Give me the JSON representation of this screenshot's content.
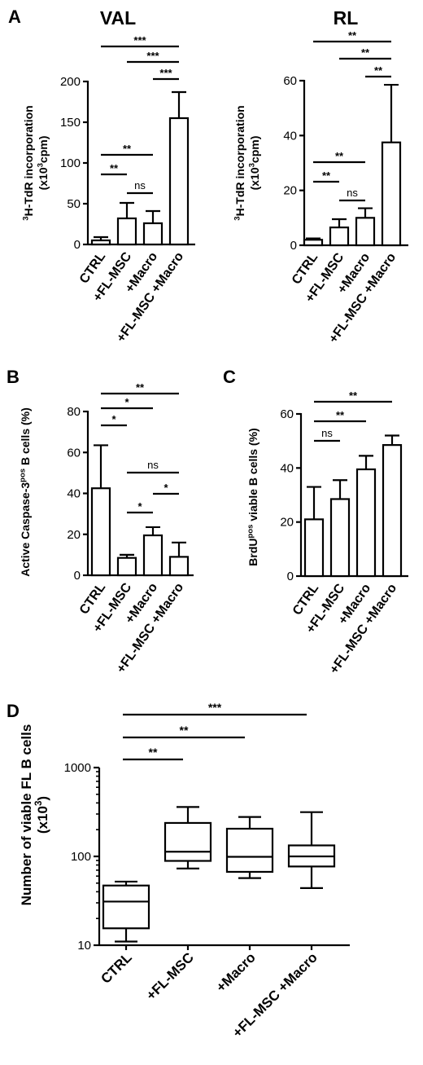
{
  "chart_data": [
    {
      "panel_label": "A",
      "title": "VAL",
      "type": "bar",
      "ylabel_sup": "3",
      "ylabel_main": "H-TdR incorporation",
      "ylabel_line2_pre": "(x10",
      "ylabel_line2_sup": "3",
      "ylabel_line2_post": "cpm)",
      "ylim": [
        0,
        200
      ],
      "yticks": [
        0,
        50,
        100,
        150,
        200
      ],
      "categories": [
        "CTRL",
        "+FL-MSC",
        "+Macro",
        "+FL-MSC +Macro"
      ],
      "values": [
        5,
        32,
        26,
        155
      ],
      "errors": [
        4,
        19,
        15,
        32
      ],
      "significance": [
        {
          "from": 0,
          "to": 3,
          "label": "***"
        },
        {
          "from": 1,
          "to": 3,
          "label": "***"
        },
        {
          "from": 2,
          "to": 3,
          "label": "***"
        },
        {
          "from": 0,
          "to": 2,
          "label": "**"
        },
        {
          "from": 0,
          "to": 1,
          "label": "**"
        },
        {
          "from": 1,
          "to": 2,
          "label": "ns"
        }
      ]
    },
    {
      "title": "RL",
      "type": "bar",
      "ylabel_sup": "3",
      "ylabel_main": "H-TdR incorporation",
      "ylabel_line2_pre": "(x10",
      "ylabel_line2_sup": "3",
      "ylabel_line2_post": "cpm)",
      "ylim": [
        0,
        60
      ],
      "yticks": [
        0,
        20,
        40,
        60
      ],
      "categories": [
        "CTRL",
        "+FL-MSC",
        "+Macro",
        "+FL-MSC +Macro"
      ],
      "values": [
        2,
        6.5,
        10,
        37.5
      ],
      "errors": [
        0.5,
        3,
        3.5,
        21
      ],
      "significance": [
        {
          "from": 0,
          "to": 3,
          "label": "**"
        },
        {
          "from": 1,
          "to": 3,
          "label": "**"
        },
        {
          "from": 2,
          "to": 3,
          "label": "**"
        },
        {
          "from": 0,
          "to": 2,
          "label": "**"
        },
        {
          "from": 0,
          "to": 1,
          "label": "**"
        },
        {
          "from": 1,
          "to": 2,
          "label": "ns"
        }
      ]
    },
    {
      "panel_label": "B",
      "type": "bar",
      "ylabel_main": "Active Caspase-3",
      "ylabel_sup": "pos",
      "ylabel_post": " B cells (%)",
      "ylim": [
        0,
        80
      ],
      "yticks": [
        0,
        20,
        40,
        60,
        80
      ],
      "categories": [
        "CTRL",
        "+FL-MSC",
        "+Macro",
        "+FL-MSC +Macro"
      ],
      "values": [
        42.5,
        8.5,
        19.5,
        9
      ],
      "errors": [
        21,
        1.5,
        4,
        7
      ],
      "significance": [
        {
          "from": 0,
          "to": 3,
          "label": "**"
        },
        {
          "from": 0,
          "to": 2,
          "label": "*"
        },
        {
          "from": 0,
          "to": 1,
          "label": "*"
        },
        {
          "from": 1,
          "to": 3,
          "label": "ns"
        },
        {
          "from": 2,
          "to": 3,
          "label": "*"
        },
        {
          "from": 1,
          "to": 2,
          "label": "*"
        }
      ]
    },
    {
      "panel_label": "C",
      "type": "bar",
      "ylabel_main": "BrdU",
      "ylabel_sup": "pos",
      "ylabel_post": " viable B cells (%)",
      "ylim": [
        0,
        60
      ],
      "yticks": [
        0,
        20,
        40,
        60
      ],
      "categories": [
        "CTRL",
        "+FL-MSC",
        "+Macro",
        "+FL-MSC +Macro"
      ],
      "values": [
        21,
        28.5,
        39.5,
        48.5
      ],
      "errors": [
        12,
        7,
        5,
        3.5
      ],
      "significance": [
        {
          "from": 0,
          "to": 3,
          "label": "**"
        },
        {
          "from": 0,
          "to": 2,
          "label": "**"
        },
        {
          "from": 0,
          "to": 1,
          "label": "ns"
        }
      ]
    },
    {
      "panel_label": "D",
      "type": "boxplot",
      "yscale": "log",
      "ylabel_main": "Number of viable FL B cells",
      "ylabel_line2_pre": "(x10",
      "ylabel_line2_sup": "3",
      "ylabel_line2_post": ")",
      "ylim": [
        10,
        1000
      ],
      "yticks": [
        10,
        100,
        1000
      ],
      "categories": [
        "CTRL",
        "+FL-MSC",
        "+Macro",
        "+FL-MSC +Macro"
      ],
      "boxes": [
        {
          "min": 11,
          "q1": 15.5,
          "median": 31,
          "q3": 47,
          "max": 52
        },
        {
          "min": 73,
          "q1": 89,
          "median": 113,
          "q3": 238,
          "max": 360
        },
        {
          "min": 57,
          "q1": 67,
          "median": 99,
          "q3": 205,
          "max": 278
        },
        {
          "min": 44,
          "q1": 77,
          "median": 100,
          "q3": 133,
          "max": 315
        }
      ],
      "significance": [
        {
          "from": 0,
          "to": 3,
          "label": "***"
        },
        {
          "from": 0,
          "to": 2,
          "label": "**"
        },
        {
          "from": 0,
          "to": 1,
          "label": "**"
        }
      ]
    }
  ]
}
